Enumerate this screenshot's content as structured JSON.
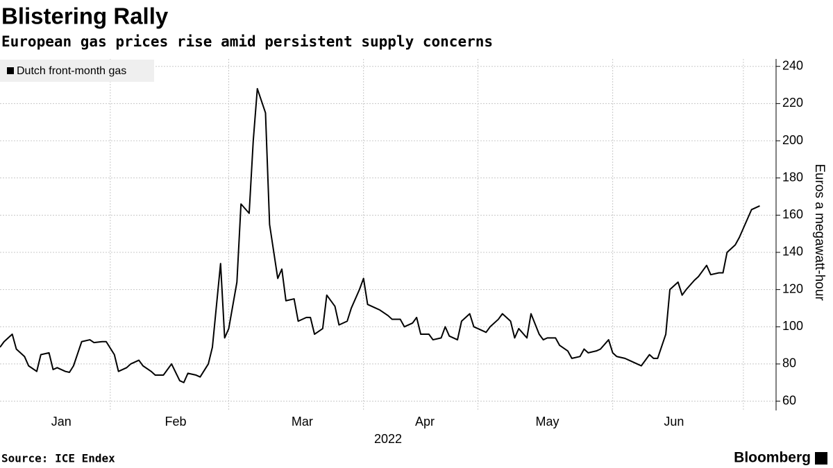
{
  "chart_data": {
    "type": "line",
    "title": "Blistering Rally",
    "subtitle": "European gas prices rise amid persistent supply concerns",
    "y_label": "Euros a megawatt-hour",
    "x_label": "2022",
    "source": "Source: ICE Endex",
    "brand": "Bloomberg",
    "x": [
      1,
      2,
      4,
      5,
      7,
      8,
      10,
      11,
      13,
      14,
      15,
      17,
      18,
      19,
      21,
      23,
      24,
      26,
      27,
      29,
      30,
      32,
      33,
      35,
      36,
      38,
      39,
      41,
      42,
      43,
      45,
      46,
      47,
      49,
      50,
      52,
      53,
      55,
      56,
      57,
      59,
      60,
      62,
      63,
      64,
      66,
      67,
      69,
      70,
      71,
      73,
      74,
      76,
      77,
      78,
      80,
      81,
      83,
      84,
      86,
      87,
      89,
      90,
      91,
      93,
      94,
      96,
      97,
      99,
      100,
      102,
      103,
      104,
      106,
      107,
      109,
      110,
      111,
      113,
      114,
      116,
      117,
      118,
      120,
      121,
      123,
      124,
      126,
      127,
      128,
      130,
      131,
      133,
      134,
      135,
      137,
      138,
      140,
      141,
      143,
      144,
      145,
      147,
      148,
      150,
      151,
      152,
      154,
      155,
      157,
      158,
      160,
      161,
      162,
      164,
      165,
      167,
      168,
      169,
      171,
      172,
      174,
      175,
      177,
      178,
      179,
      181,
      182,
      185,
      187
    ],
    "series": [
      {
        "name": "Dutch front-month gas",
        "color": "#000000",
        "values": [
          89,
          92,
          96,
          88,
          84,
          79,
          76,
          85,
          86,
          77,
          78,
          76,
          75.5,
          79,
          92,
          93,
          91.5,
          92,
          92,
          85,
          76,
          78,
          80,
          82,
          79,
          76,
          74,
          74,
          77,
          80,
          71,
          70,
          75,
          74,
          73,
          80,
          89,
          134,
          94,
          99,
          124,
          166,
          161,
          200,
          228,
          215,
          155,
          126,
          131,
          114,
          115,
          103,
          105,
          105,
          96,
          99,
          117,
          111,
          101,
          103,
          110,
          120,
          126,
          112,
          110,
          109,
          106,
          104,
          104,
          100,
          102,
          105,
          96,
          96,
          93,
          94,
          100,
          95,
          93,
          103,
          107,
          100,
          99,
          97,
          100,
          104,
          107,
          103,
          94,
          99,
          94,
          107,
          96,
          93,
          94,
          94,
          90,
          87,
          83,
          84,
          88,
          86,
          87,
          88,
          93,
          86,
          84,
          83,
          82,
          80,
          79,
          85,
          83,
          83,
          96,
          120,
          124,
          117,
          120,
          125,
          127,
          133,
          128,
          129,
          129,
          140,
          144,
          148,
          163,
          165
        ]
      }
    ],
    "xlim": [
      1,
      191
    ],
    "xticks": [
      {
        "value": 16,
        "label": "Jan"
      },
      {
        "value": 44,
        "label": "Feb"
      },
      {
        "value": 75,
        "label": "Mar"
      },
      {
        "value": 105,
        "label": "Apr"
      },
      {
        "value": 135,
        "label": "May"
      },
      {
        "value": 166,
        "label": "Jun"
      }
    ],
    "xgrid": [
      28,
      57,
      90,
      118,
      151,
      183
    ],
    "ylim": [
      55,
      244
    ],
    "yticks": [
      60,
      80,
      100,
      120,
      140,
      160,
      180,
      200,
      220,
      240
    ],
    "grid": true,
    "legend": "top-left"
  }
}
